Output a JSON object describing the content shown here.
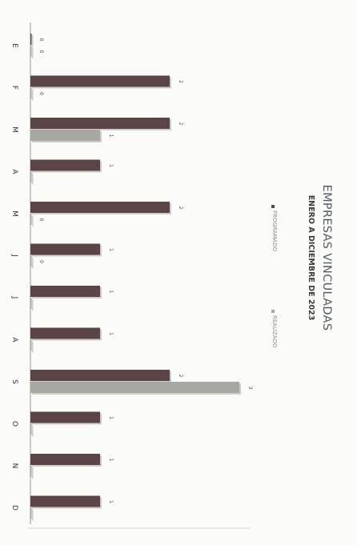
{
  "chart_data": {
    "type": "bar",
    "orientation": "horizontal",
    "title": "EMPRESAS VINCULADAS",
    "subtitle": "ENERO A DICIEMBRE DE 2023",
    "categories": [
      "E",
      "F",
      "M",
      "A",
      "M",
      "J",
      "J",
      "A",
      "S",
      "O",
      "N",
      "D"
    ],
    "series": [
      {
        "name": "PROGRAMADO",
        "values": [
          0,
          2,
          2,
          1,
          2,
          1,
          1,
          1,
          2,
          1,
          1,
          1
        ],
        "color": "#5b4446"
      },
      {
        "name": "REALIZADO",
        "values": [
          0,
          0,
          1,
          0,
          0,
          0,
          0,
          0,
          3,
          0,
          0,
          0
        ],
        "color": "#a8a8a3"
      }
    ],
    "value_labels": {
      "PROGRAMADO": [
        "0",
        "2",
        "2",
        "1",
        "2",
        "1",
        "1",
        "1",
        "2",
        "1",
        "1",
        "1"
      ],
      "REALIZADO": [
        "0",
        "0",
        "1",
        "",
        "0",
        "0",
        "",
        "",
        "3",
        "",
        "",
        ""
      ]
    },
    "xlim": [
      0,
      3
    ],
    "grid": false,
    "legend_position": "top"
  }
}
